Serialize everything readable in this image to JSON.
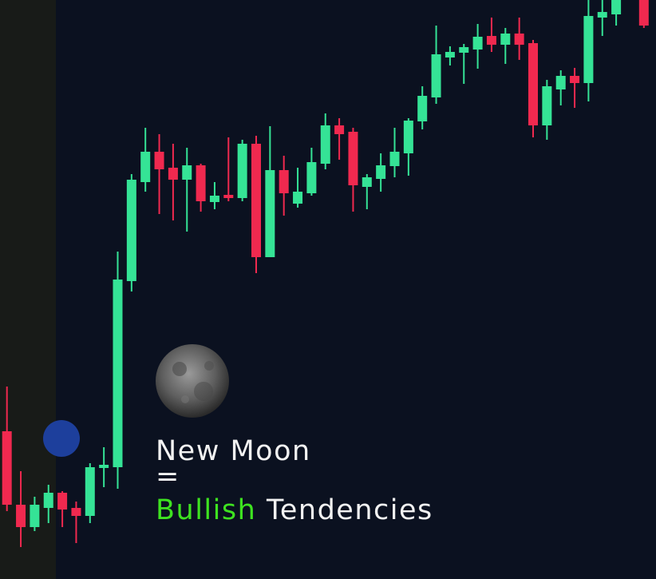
{
  "chart_data": {
    "type": "candlestick",
    "categories": [
      null,
      null,
      null,
      null,
      null,
      null,
      null,
      null,
      null,
      null,
      null,
      null,
      null,
      null,
      null,
      null,
      null,
      null,
      null,
      null,
      null,
      null,
      null,
      null,
      null,
      null,
      null,
      null,
      null,
      null,
      null,
      null,
      null,
      null,
      null,
      null,
      null,
      null,
      null,
      null,
      null,
      null,
      null,
      null,
      null,
      null,
      null
    ],
    "open": [
      185,
      93,
      65,
      89,
      108,
      89,
      79,
      139,
      140,
      373,
      497,
      535,
      515,
      500,
      518,
      472,
      481,
      477,
      545,
      403,
      512,
      470,
      483,
      520,
      568,
      560,
      491,
      501,
      517,
      533,
      573,
      603,
      653,
      659,
      663,
      680,
      669,
      683,
      671,
      568,
      613,
      630,
      621,
      703,
      707,
      null,
      725
    ],
    "high": [
      241,
      135,
      103,
      118,
      110,
      97,
      145,
      165,
      410,
      507,
      565,
      557,
      545,
      540,
      520,
      497,
      553,
      550,
      555,
      567,
      530,
      515,
      540,
      583,
      577,
      565,
      507,
      533,
      565,
      577,
      617,
      693,
      667,
      670,
      695,
      703,
      690,
      703,
      675,
      625,
      637,
      640,
      725,
      725,
      725,
      null,
      725
    ],
    "low": [
      85,
      40,
      60,
      70,
      65,
      45,
      70,
      115,
      113,
      360,
      485,
      457,
      449,
      435,
      460,
      463,
      473,
      473,
      383,
      403,
      455,
      465,
      480,
      513,
      525,
      460,
      463,
      485,
      503,
      505,
      563,
      595,
      643,
      620,
      639,
      660,
      645,
      650,
      553,
      550,
      593,
      590,
      598,
      680,
      693,
      null,
      690
    ],
    "close": [
      93,
      65,
      93,
      108,
      87,
      79,
      140,
      143,
      375,
      500,
      535,
      513,
      500,
      518,
      473,
      480,
      477,
      545,
      403,
      512,
      483,
      485,
      522,
      568,
      557,
      493,
      503,
      518,
      535,
      574,
      605,
      657,
      660,
      666,
      679,
      669,
      683,
      669,
      568,
      617,
      630,
      621,
      705,
      710,
      725,
      null,
      693
    ],
    "up_color": "#35e396",
    "down_color": "#f0294f",
    "ylim": [
      0,
      725
    ],
    "annotation": {
      "line1": "New Moon",
      "equals": "=",
      "highlight": "Bullish",
      "rest": "Tendencies"
    }
  }
}
